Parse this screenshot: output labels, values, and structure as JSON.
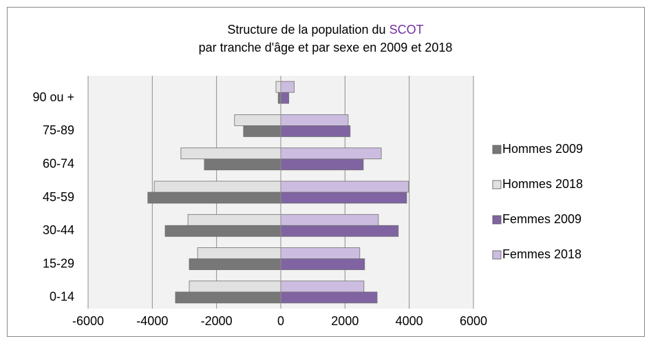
{
  "chart_data": {
    "type": "bar",
    "orientation": "horizontal",
    "title": [
      [
        {
          "text": "Structure de la population du"
        },
        {
          "text": "SCOT",
          "color": "#7030a0"
        }
      ],
      [
        {
          "text": "par tranche d'âge et par sexe en 2009 et  2018"
        }
      ]
    ],
    "categories": [
      "0-14",
      "15-29",
      "30-44",
      "45-59",
      "60-74",
      "75-89",
      "90 ou +"
    ],
    "series": [
      {
        "name": "Hommes 2009",
        "color": "#777777",
        "values": [
          -3280,
          -2850,
          -3600,
          -4140,
          -2380,
          -1160,
          -80
        ]
      },
      {
        "name": "Hommes 2018",
        "color": "#e1e1e1",
        "values": [
          -2850,
          -2590,
          -2890,
          -3940,
          -3110,
          -1440,
          -150
        ]
      },
      {
        "name": "Femmes 2009",
        "color": "#8064a2",
        "values": [
          3000,
          2610,
          3660,
          3920,
          2570,
          2160,
          250
        ]
      },
      {
        "name": "Femmes 2018",
        "color": "#ccbde0",
        "values": [
          2590,
          2460,
          3040,
          3980,
          3130,
          2100,
          420
        ]
      }
    ],
    "xlim": [
      -6000,
      6000
    ],
    "xticks": [
      -6000,
      -4000,
      -2000,
      0,
      2000,
      4000,
      6000
    ],
    "grid": true,
    "legend": "right"
  }
}
